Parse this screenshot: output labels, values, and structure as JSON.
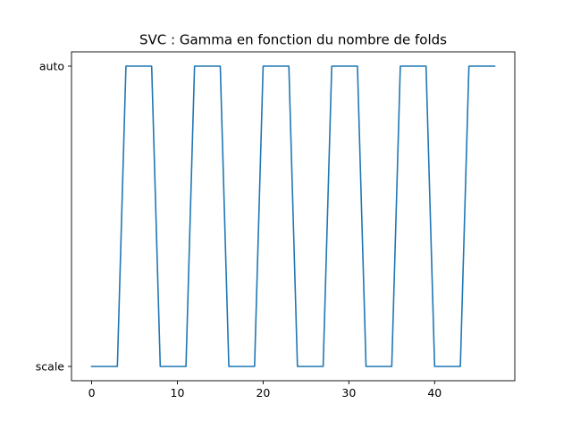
{
  "chart_data": {
    "type": "line",
    "title": "SVC : Gamma en fonction du nombre de folds",
    "xlabel": "",
    "ylabel": "",
    "y_categories": [
      "scale",
      "auto"
    ],
    "x_ticks": [
      0,
      10,
      20,
      30,
      40
    ],
    "xlim": [
      -2.35,
      49.35
    ],
    "series": [
      {
        "color": "#1f77b4",
        "x": [
          0,
          1,
          2,
          3,
          4,
          5,
          6,
          7,
          8,
          9,
          10,
          11,
          12,
          13,
          14,
          15,
          16,
          17,
          18,
          19,
          20,
          21,
          22,
          23,
          24,
          25,
          26,
          27,
          28,
          29,
          30,
          31,
          32,
          33,
          34,
          35,
          36,
          37,
          38,
          39,
          40,
          41,
          42,
          43,
          44,
          45,
          46,
          47
        ],
        "y": [
          "scale",
          "scale",
          "scale",
          "scale",
          "auto",
          "auto",
          "auto",
          "auto",
          "scale",
          "scale",
          "scale",
          "scale",
          "auto",
          "auto",
          "auto",
          "auto",
          "scale",
          "scale",
          "scale",
          "scale",
          "auto",
          "auto",
          "auto",
          "auto",
          "scale",
          "scale",
          "scale",
          "scale",
          "auto",
          "auto",
          "auto",
          "auto",
          "scale",
          "scale",
          "scale",
          "scale",
          "auto",
          "auto",
          "auto",
          "auto",
          "scale",
          "scale",
          "scale",
          "scale",
          "auto",
          "auto",
          "auto",
          "auto"
        ]
      }
    ],
    "grid": false,
    "legend": "none"
  }
}
